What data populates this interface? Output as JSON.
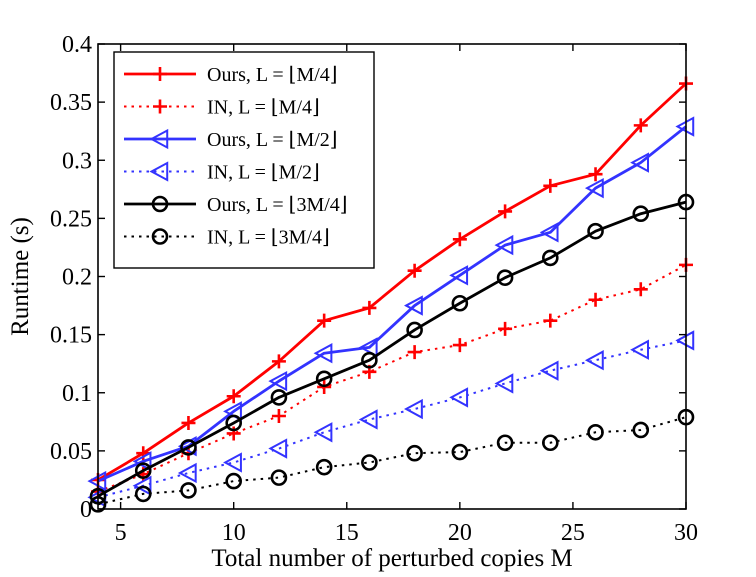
{
  "chart_data": {
    "type": "line",
    "title": "",
    "xlabel": "Total number of perturbed copies M",
    "ylabel": "Runtime (s)",
    "xlim": [
      4,
      30
    ],
    "ylim": [
      0,
      0.4
    ],
    "x_ticks": [
      5,
      10,
      15,
      20,
      25,
      30
    ],
    "x_tick_labels": [
      "5",
      "10",
      "15",
      "20",
      "25",
      "30"
    ],
    "y_ticks": [
      0,
      0.05,
      0.1,
      0.15,
      0.2,
      0.25,
      0.3,
      0.35,
      0.4
    ],
    "y_tick_labels": [
      "0",
      "0.05",
      "0.1",
      "0.15",
      "0.2",
      "0.25",
      "0.3",
      "0.35",
      "0.4"
    ],
    "grid": false,
    "legend_position": "top-left",
    "x": [
      4,
      6,
      8,
      10,
      12,
      14,
      16,
      18,
      20,
      22,
      24,
      26,
      28,
      30
    ],
    "series": [
      {
        "name": "Ours, L = ⌊M/4⌋",
        "line_style": "solid",
        "marker": "plus",
        "color": "#ff0000",
        "values": [
          0.025,
          0.048,
          0.074,
          0.097,
          0.127,
          0.162,
          0.173,
          0.205,
          0.232,
          0.256,
          0.278,
          0.288,
          0.33,
          0.366
        ]
      },
      {
        "name": "IN, L = ⌊M/4⌋",
        "line_style": "dotted",
        "marker": "plus",
        "color": "#ff0000",
        "values": [
          0.015,
          0.03,
          0.048,
          0.065,
          0.08,
          0.105,
          0.118,
          0.135,
          0.141,
          0.155,
          0.162,
          0.18,
          0.189,
          0.21
        ]
      },
      {
        "name": "Ours, L = ⌊M/2⌋",
        "line_style": "solid",
        "marker": "triangle-left",
        "color": "#3333ff",
        "values": [
          0.024,
          0.041,
          0.054,
          0.084,
          0.11,
          0.134,
          0.139,
          0.175,
          0.201,
          0.227,
          0.238,
          0.276,
          0.298,
          0.329
        ]
      },
      {
        "name": "IN, L = ⌊M/2⌋",
        "line_style": "dotted",
        "marker": "triangle-left",
        "color": "#3333ff",
        "values": [
          0.01,
          0.02,
          0.031,
          0.04,
          0.052,
          0.066,
          0.077,
          0.086,
          0.096,
          0.108,
          0.119,
          0.128,
          0.137,
          0.145
        ]
      },
      {
        "name": "Ours, L = ⌊3M/4⌋",
        "line_style": "solid",
        "marker": "circle",
        "color": "#000000",
        "values": [
          0.011,
          0.033,
          0.053,
          0.074,
          0.096,
          0.112,
          0.128,
          0.154,
          0.177,
          0.199,
          0.216,
          0.239,
          0.254,
          0.264
        ]
      },
      {
        "name": "IN, L = ⌊3M/4⌋",
        "line_style": "dotted",
        "marker": "circle",
        "color": "#000000",
        "values": [
          0.004,
          0.013,
          0.016,
          0.024,
          0.027,
          0.036,
          0.04,
          0.048,
          0.049,
          0.057,
          0.057,
          0.066,
          0.068,
          0.079
        ]
      }
    ]
  }
}
